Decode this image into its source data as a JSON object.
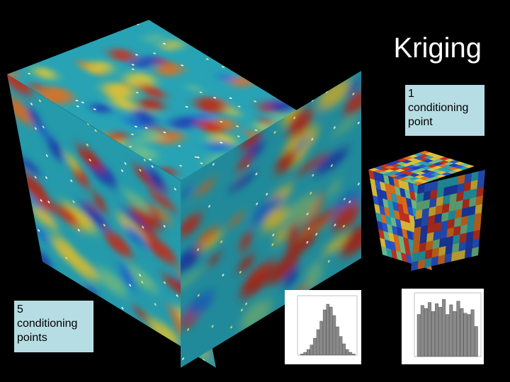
{
  "title": "Kriging",
  "labels": [
    {
      "lines": [
        "1",
        "conditioning",
        "point"
      ]
    },
    {
      "lines": [
        "5",
        "conditioning",
        "points"
      ]
    }
  ]
}
